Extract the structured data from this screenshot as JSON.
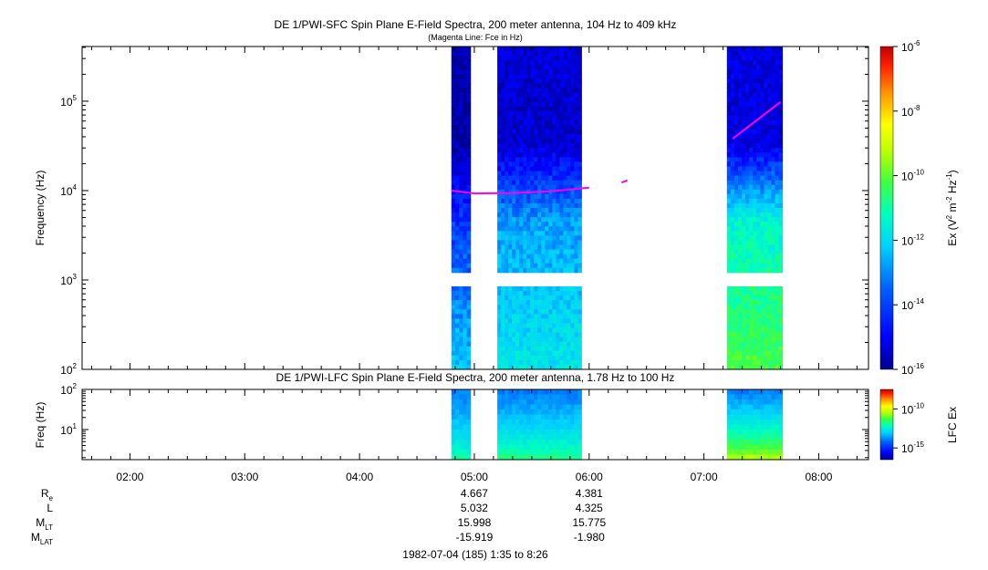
{
  "chart_data": [
    {
      "type": "heatmap",
      "title": "DE 1/PWI-SFC  Spin Plane E-Field Spectra, 200 meter antenna, 104 Hz to 409 kHz",
      "subtitle": "(Magenta Line: Fce in Hz)",
      "ylabel": "Frequency (Hz)",
      "yscale": "log",
      "ylim": [
        100,
        409000
      ],
      "yticks": [
        100,
        1000,
        10000,
        100000
      ],
      "ytick_labels": [
        [
          "10",
          "2"
        ],
        [
          "10",
          "3"
        ],
        [
          "10",
          "4"
        ],
        [
          "10",
          "5"
        ]
      ],
      "colorbar": {
        "label": "Ex (V² m⁻² Hz⁻¹)",
        "label_parts": [
          "Ex (V",
          "2",
          " m",
          "-2",
          " Hz",
          "-1",
          ")"
        ],
        "scale": "log",
        "range": [
          1e-16,
          1e-06
        ],
        "tick_labels": [
          [
            "10",
            "-6"
          ],
          [
            "10",
            "-8"
          ],
          [
            "10",
            "-10"
          ],
          [
            "10",
            "-12"
          ],
          [
            "10",
            "-14"
          ],
          [
            "10",
            "-16"
          ]
        ],
        "tick_values": [
          -6,
          -8,
          -10,
          -12,
          -14,
          -16
        ]
      },
      "data_gap_bands_hz": [
        [
          900,
          1100
        ]
      ],
      "data_segments": [
        {
          "start": "04:48",
          "end": "04:58",
          "low_log10": -13.0,
          "mid_log10": -14.4,
          "high_log10": -15.8
        },
        {
          "start": "05:12",
          "end": "05:56",
          "low_log10": -12.6,
          "mid_log10": -13.4,
          "high_log10": -15.4
        },
        {
          "start": "07:12",
          "end": "07:41",
          "low_log10": -11.0,
          "mid_log10": -12.2,
          "high_log10": -15.3
        }
      ],
      "series": [
        {
          "name": "Fce",
          "color": "#ff00ff",
          "points": [
            [
              "04:48",
              10000
            ],
            [
              "05:00",
              9300
            ],
            [
              "05:20",
              9400
            ],
            [
              "05:40",
              9800
            ],
            [
              "06:00",
              10800
            ]
          ]
        },
        {
          "name": "Fce",
          "color": "#ff00ff",
          "points": [
            [
              "06:17",
              12300
            ],
            [
              "06:20",
              13000
            ]
          ]
        },
        {
          "name": "Fce",
          "color": "#ff00ff",
          "points": [
            [
              "07:15",
              38000
            ],
            [
              "07:40",
              98000
            ]
          ]
        }
      ]
    },
    {
      "type": "heatmap",
      "title": "DE 1/PWI-LFC  Spin Plane E-Field Spectra, 200 meter antenna, 1.78 Hz to 100 Hz",
      "ylabel": "Freq (Hz)",
      "yscale": "log",
      "ylim": [
        1.78,
        100
      ],
      "yticks": [
        10,
        100
      ],
      "ytick_labels": [
        [
          "10",
          "1"
        ],
        [
          "10",
          "2"
        ]
      ],
      "colorbar": {
        "label": "LFC Ex",
        "scale": "log",
        "tick_labels": [
          [
            "10",
            "-10"
          ],
          [
            "10",
            "-15"
          ]
        ],
        "tick_values": [
          -10,
          -15
        ]
      },
      "data_segments": [
        {
          "start": "04:48",
          "end": "04:58",
          "bottom_log10": -11.5,
          "top_log10": -13.8
        },
        {
          "start": "05:12",
          "end": "05:56",
          "bottom_log10": -11.2,
          "top_log10": -13.8
        },
        {
          "start": "07:12",
          "end": "07:41",
          "bottom_log10": -9.6,
          "top_log10": -13.8
        }
      ]
    }
  ],
  "x_axis": {
    "range": [
      "01:35",
      "08:26"
    ],
    "tick_labels": [
      "02:00",
      "03:00",
      "04:00",
      "05:00",
      "06:00",
      "07:00",
      "08:00"
    ]
  },
  "ephemeris": {
    "labels": [
      [
        "R",
        "e"
      ],
      [
        "L",
        ""
      ],
      [
        "M",
        "LT"
      ],
      [
        "M",
        "LAT"
      ]
    ],
    "columns": [
      {
        "time": "05:00",
        "values": [
          "4.667",
          "5.032",
          "15.998",
          "-15.919"
        ]
      },
      {
        "time": "06:00",
        "values": [
          "4.381",
          "4.325",
          "15.775",
          "-1.980"
        ]
      }
    ]
  },
  "footer": "1982-07-04 (185) 1:35 to 8:26",
  "colors": {
    "fce_line": "#ff00ff",
    "colormap": [
      "#00008f",
      "#0000ff",
      "#0060ff",
      "#00d0ff",
      "#00ffc0",
      "#40ff40",
      "#c0ff00",
      "#ffff00",
      "#ff9000",
      "#ff2000",
      "#c00000"
    ]
  }
}
